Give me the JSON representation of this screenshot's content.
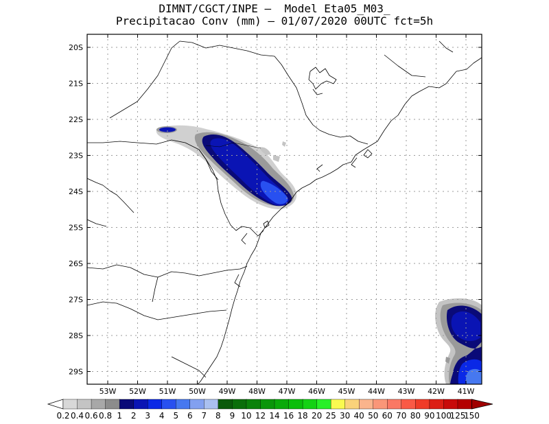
{
  "title": {
    "line1": "DIMNT/CGCT/INPE –  Model Eta05_M03_",
    "line2": "Precipitacao Conv (mm) – 01/07/2020 00UTC fct=5h"
  },
  "map": {
    "lat_labels": [
      "20S",
      "21S",
      "22S",
      "23S",
      "24S",
      "25S",
      "26S",
      "27S",
      "28S",
      "29S"
    ],
    "lon_labels": [
      "53W",
      "52W",
      "51W",
      "50W",
      "49W",
      "48W",
      "47W",
      "46W",
      "45W",
      "44W",
      "43W",
      "42W",
      "41W"
    ],
    "grid": "dotted",
    "coastline_color": "#000000"
  },
  "colorbar": {
    "labels": [
      "0.2",
      "0.4",
      "0.6",
      "0.8",
      "1",
      "2",
      "3",
      "4",
      "5",
      "6",
      "7",
      "8",
      "9",
      "10",
      "12",
      "14",
      "16",
      "18",
      "20",
      "25",
      "30",
      "40",
      "50",
      "60",
      "70",
      "80",
      "90",
      "100",
      "125",
      "150"
    ],
    "colors": [
      "#d8d8d8",
      "#c4c4c4",
      "#a8a8a8",
      "#8c8c8c",
      "#0a0a78",
      "#0a14b4",
      "#0a28e6",
      "#2850f0",
      "#4678f0",
      "#82a0f0",
      "#aac0f0",
      "#0a5a0a",
      "#0a6e0a",
      "#0a820a",
      "#0a960a",
      "#0aaa0a",
      "#0abe0a",
      "#14d214",
      "#28f028",
      "#fafa50",
      "#fad27a",
      "#fab48c",
      "#fa9678",
      "#fa7864",
      "#fa5a46",
      "#f03c28",
      "#dc1e14",
      "#c80a0a",
      "#b40000",
      "#a00000"
    ]
  }
}
